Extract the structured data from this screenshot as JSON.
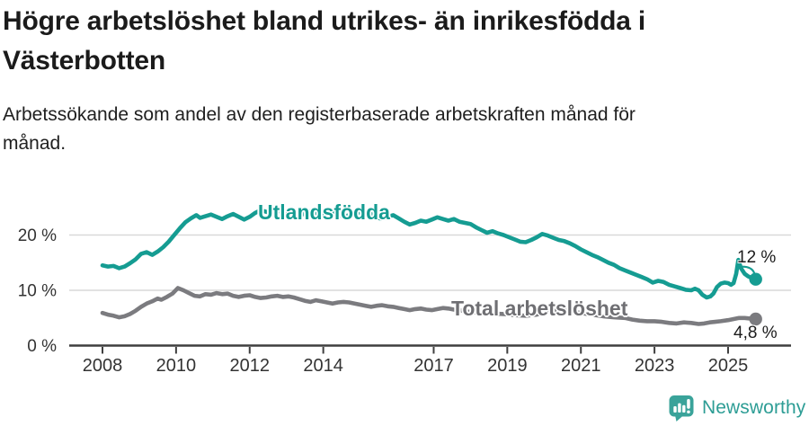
{
  "header": {
    "title_lines": [
      "Högre arbetslöshet bland utrikes- än inrikesfödda i",
      "Västerbotten"
    ],
    "subtitle_lines": [
      "Arbetssökande som andel av den registerbaserade arbetskraften månad för",
      "månad."
    ]
  },
  "colors": {
    "accent_teal": "#159c92",
    "line_gray": "#7b7b7f",
    "label_gray": "#6f6f73",
    "grid": "#d9d9d9",
    "axis": "#3f3f3f",
    "tick_text": "#333333",
    "text": "#1b1b1b",
    "brand_teal": "#2d9d95"
  },
  "chart_data": {
    "type": "line",
    "unit": "%",
    "x_axis": {
      "ticks": [
        2008,
        2010,
        2012,
        2014,
        2017,
        2019,
        2021,
        2023,
        2025
      ],
      "labels": [
        "2008",
        "2010",
        "2012",
        "2014",
        "2017",
        "2019",
        "2021",
        "2023",
        "2025"
      ],
      "range": [
        2008,
        2025.75
      ]
    },
    "y_axis": {
      "ticks": [
        0,
        10,
        20
      ],
      "labels": [
        "0 %",
        "10 %",
        "20 %"
      ],
      "ylim": [
        0,
        27
      ],
      "grid": true
    },
    "series": [
      {
        "id": "utlandsfodda",
        "name": "Utlandsfödda",
        "color": "#159c92",
        "end_value_label": "12 %",
        "points": [
          [
            2008.0,
            14.5
          ],
          [
            2008.15,
            14.3
          ],
          [
            2008.3,
            14.4
          ],
          [
            2008.45,
            14.0
          ],
          [
            2008.6,
            14.3
          ],
          [
            2008.75,
            14.9
          ],
          [
            2008.9,
            15.6
          ],
          [
            2009.05,
            16.6
          ],
          [
            2009.2,
            16.9
          ],
          [
            2009.35,
            16.4
          ],
          [
            2009.5,
            17.0
          ],
          [
            2009.65,
            17.8
          ],
          [
            2009.8,
            18.8
          ],
          [
            2009.95,
            20.0
          ],
          [
            2010.1,
            21.2
          ],
          [
            2010.25,
            22.3
          ],
          [
            2010.4,
            23.0
          ],
          [
            2010.55,
            23.6
          ],
          [
            2010.65,
            23.1
          ],
          [
            2010.8,
            23.4
          ],
          [
            2010.95,
            23.7
          ],
          [
            2011.1,
            23.3
          ],
          [
            2011.25,
            22.9
          ],
          [
            2011.4,
            23.4
          ],
          [
            2011.55,
            23.8
          ],
          [
            2011.7,
            23.3
          ],
          [
            2011.85,
            22.8
          ],
          [
            2012.0,
            23.3
          ],
          [
            2012.15,
            24.0
          ],
          [
            2012.3,
            24.5
          ],
          [
            2012.45,
            24.2
          ],
          [
            2012.6,
            23.9
          ],
          [
            2012.75,
            24.2
          ],
          [
            2012.9,
            24.5
          ],
          [
            2013.05,
            24.2
          ],
          [
            2013.2,
            23.8
          ],
          [
            2013.35,
            23.5
          ],
          [
            2013.5,
            23.9
          ],
          [
            2013.65,
            24.3
          ],
          [
            2013.8,
            24.0
          ],
          [
            2013.95,
            23.6
          ],
          [
            2014.1,
            23.9
          ],
          [
            2014.25,
            24.2
          ],
          [
            2014.4,
            23.8
          ],
          [
            2014.55,
            23.3
          ],
          [
            2014.7,
            23.6
          ],
          [
            2014.85,
            23.9
          ],
          [
            2015.0,
            24.1
          ],
          [
            2015.15,
            24.3
          ],
          [
            2015.3,
            23.8
          ],
          [
            2015.45,
            23.2
          ],
          [
            2015.6,
            22.9
          ],
          [
            2015.75,
            23.3
          ],
          [
            2015.9,
            23.6
          ],
          [
            2016.05,
            23.0
          ],
          [
            2016.2,
            22.4
          ],
          [
            2016.35,
            21.9
          ],
          [
            2016.5,
            22.2
          ],
          [
            2016.65,
            22.6
          ],
          [
            2016.8,
            22.4
          ],
          [
            2016.95,
            22.8
          ],
          [
            2017.1,
            23.2
          ],
          [
            2017.25,
            22.9
          ],
          [
            2017.4,
            22.6
          ],
          [
            2017.55,
            22.9
          ],
          [
            2017.7,
            22.4
          ],
          [
            2017.85,
            22.2
          ],
          [
            2018.0,
            22.0
          ],
          [
            2018.15,
            21.4
          ],
          [
            2018.3,
            20.9
          ],
          [
            2018.45,
            20.4
          ],
          [
            2018.6,
            20.7
          ],
          [
            2018.75,
            20.3
          ],
          [
            2018.9,
            20.0
          ],
          [
            2019.05,
            19.6
          ],
          [
            2019.2,
            19.2
          ],
          [
            2019.35,
            18.8
          ],
          [
            2019.5,
            18.7
          ],
          [
            2019.65,
            19.1
          ],
          [
            2019.8,
            19.6
          ],
          [
            2019.95,
            20.2
          ],
          [
            2020.1,
            19.9
          ],
          [
            2020.25,
            19.5
          ],
          [
            2020.4,
            19.1
          ],
          [
            2020.55,
            18.9
          ],
          [
            2020.7,
            18.5
          ],
          [
            2020.85,
            18.0
          ],
          [
            2021.0,
            17.4
          ],
          [
            2021.15,
            16.9
          ],
          [
            2021.3,
            16.4
          ],
          [
            2021.45,
            16.0
          ],
          [
            2021.6,
            15.5
          ],
          [
            2021.75,
            15.0
          ],
          [
            2021.9,
            14.6
          ],
          [
            2022.05,
            14.0
          ],
          [
            2022.2,
            13.6
          ],
          [
            2022.35,
            13.2
          ],
          [
            2022.5,
            12.8
          ],
          [
            2022.65,
            12.4
          ],
          [
            2022.8,
            12.0
          ],
          [
            2022.95,
            11.4
          ],
          [
            2023.1,
            11.7
          ],
          [
            2023.25,
            11.5
          ],
          [
            2023.4,
            11.0
          ],
          [
            2023.55,
            10.7
          ],
          [
            2023.7,
            10.4
          ],
          [
            2023.85,
            10.1
          ],
          [
            2024.0,
            10.0
          ],
          [
            2024.1,
            10.3
          ],
          [
            2024.2,
            10.0
          ],
          [
            2024.3,
            9.2
          ],
          [
            2024.42,
            8.7
          ],
          [
            2024.52,
            8.9
          ],
          [
            2024.6,
            9.4
          ],
          [
            2024.7,
            10.6
          ],
          [
            2024.8,
            11.2
          ],
          [
            2024.9,
            11.4
          ],
          [
            2025.0,
            11.3
          ],
          [
            2025.08,
            11.0
          ],
          [
            2025.15,
            11.3
          ],
          [
            2025.22,
            13.0
          ],
          [
            2025.28,
            15.5
          ],
          [
            2025.35,
            14.0
          ],
          [
            2025.45,
            13.0
          ],
          [
            2025.55,
            12.5
          ],
          [
            2025.65,
            12.2
          ],
          [
            2025.75,
            12.0
          ]
        ]
      },
      {
        "id": "total",
        "name": "Total arbetslöshet",
        "color": "#7b7b7f",
        "end_value_label": "4,8 %",
        "points": [
          [
            2008.0,
            5.9
          ],
          [
            2008.15,
            5.6
          ],
          [
            2008.3,
            5.4
          ],
          [
            2008.45,
            5.1
          ],
          [
            2008.6,
            5.3
          ],
          [
            2008.75,
            5.7
          ],
          [
            2008.9,
            6.3
          ],
          [
            2009.05,
            7.0
          ],
          [
            2009.2,
            7.6
          ],
          [
            2009.35,
            8.0
          ],
          [
            2009.5,
            8.5
          ],
          [
            2009.6,
            8.3
          ],
          [
            2009.75,
            8.8
          ],
          [
            2009.9,
            9.4
          ],
          [
            2010.05,
            10.4
          ],
          [
            2010.2,
            10.0
          ],
          [
            2010.35,
            9.5
          ],
          [
            2010.5,
            9.0
          ],
          [
            2010.65,
            8.9
          ],
          [
            2010.8,
            9.3
          ],
          [
            2010.95,
            9.2
          ],
          [
            2011.1,
            9.5
          ],
          [
            2011.25,
            9.3
          ],
          [
            2011.4,
            9.4
          ],
          [
            2011.55,
            9.0
          ],
          [
            2011.7,
            8.8
          ],
          [
            2011.85,
            9.0
          ],
          [
            2012.0,
            9.1
          ],
          [
            2012.15,
            8.8
          ],
          [
            2012.3,
            8.6
          ],
          [
            2012.45,
            8.7
          ],
          [
            2012.6,
            8.9
          ],
          [
            2012.75,
            9.0
          ],
          [
            2012.9,
            8.8
          ],
          [
            2013.05,
            8.9
          ],
          [
            2013.2,
            8.7
          ],
          [
            2013.35,
            8.4
          ],
          [
            2013.5,
            8.1
          ],
          [
            2013.65,
            7.9
          ],
          [
            2013.8,
            8.2
          ],
          [
            2013.95,
            8.0
          ],
          [
            2014.1,
            7.8
          ],
          [
            2014.25,
            7.6
          ],
          [
            2014.4,
            7.8
          ],
          [
            2014.55,
            7.9
          ],
          [
            2014.7,
            7.8
          ],
          [
            2014.85,
            7.6
          ],
          [
            2015.0,
            7.4
          ],
          [
            2015.15,
            7.2
          ],
          [
            2015.3,
            7.0
          ],
          [
            2015.45,
            7.2
          ],
          [
            2015.6,
            7.3
          ],
          [
            2015.75,
            7.1
          ],
          [
            2015.9,
            7.0
          ],
          [
            2016.05,
            6.8
          ],
          [
            2016.2,
            6.6
          ],
          [
            2016.35,
            6.4
          ],
          [
            2016.5,
            6.6
          ],
          [
            2016.65,
            6.7
          ],
          [
            2016.8,
            6.5
          ],
          [
            2016.95,
            6.4
          ],
          [
            2017.1,
            6.6
          ],
          [
            2017.25,
            6.8
          ],
          [
            2017.4,
            6.7
          ],
          [
            2017.55,
            6.5
          ],
          [
            2017.7,
            6.4
          ],
          [
            2017.85,
            6.2
          ],
          [
            2018.0,
            6.1
          ],
          [
            2018.3,
            5.9
          ],
          [
            2018.6,
            5.8
          ],
          [
            2018.9,
            5.7
          ],
          [
            2019.2,
            5.5
          ],
          [
            2019.5,
            5.4
          ],
          [
            2019.8,
            5.6
          ],
          [
            2020.1,
            6.2
          ],
          [
            2020.4,
            6.5
          ],
          [
            2020.7,
            6.2
          ],
          [
            2021.0,
            5.9
          ],
          [
            2021.3,
            5.6
          ],
          [
            2021.6,
            5.3
          ],
          [
            2021.9,
            5.1
          ],
          [
            2022.2,
            5.0
          ],
          [
            2022.4,
            4.7
          ],
          [
            2022.6,
            4.5
          ],
          [
            2022.8,
            4.4
          ],
          [
            2023.0,
            4.4
          ],
          [
            2023.2,
            4.3
          ],
          [
            2023.4,
            4.1
          ],
          [
            2023.6,
            4.0
          ],
          [
            2023.8,
            4.2
          ],
          [
            2024.0,
            4.1
          ],
          [
            2024.2,
            3.9
          ],
          [
            2024.35,
            4.0
          ],
          [
            2024.5,
            4.2
          ],
          [
            2024.65,
            4.3
          ],
          [
            2024.8,
            4.4
          ],
          [
            2025.0,
            4.6
          ],
          [
            2025.15,
            4.8
          ],
          [
            2025.3,
            5.0
          ],
          [
            2025.45,
            5.0
          ],
          [
            2025.6,
            4.9
          ],
          [
            2025.75,
            4.8
          ]
        ]
      }
    ]
  },
  "footer": {
    "brand": "Newsworthy"
  }
}
